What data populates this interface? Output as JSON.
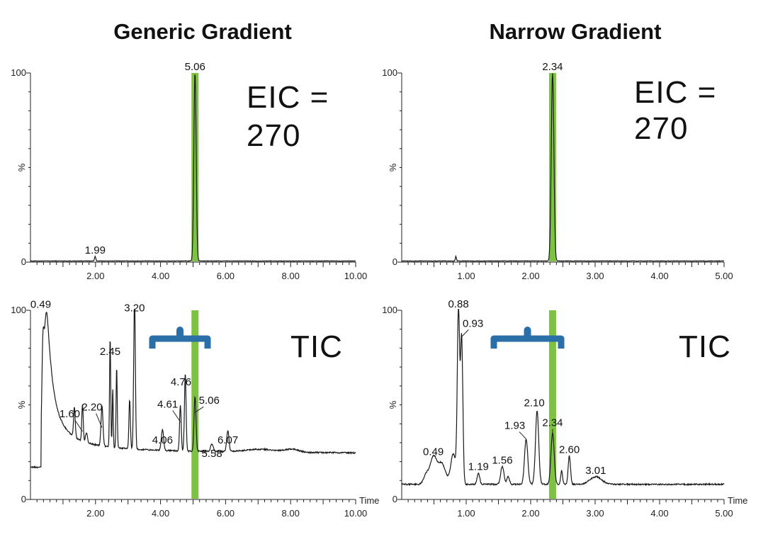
{
  "colors": {
    "trace": "#1a1a1a",
    "highlight_band": "#7dc242",
    "bracket": "#2a6fa8"
  },
  "chart_data": [
    {
      "type": "line",
      "panel_title": "Generic Gradient",
      "annotation": "EIC =",
      "annotation2": "270",
      "xlim": [
        0,
        10
      ],
      "ylim": [
        0,
        100
      ],
      "ylabel": "%",
      "xlabel": "",
      "x_tick_labels": [
        "2.00",
        "4.00",
        "6.00",
        "8.00",
        "10.00"
      ],
      "x_ticks": [
        2,
        4,
        6,
        8,
        10
      ],
      "y_tick_labels": [
        "0",
        "100"
      ],
      "y_ticks": [
        0,
        100
      ],
      "baseline": 0.6,
      "peaks": [
        {
          "rt": 1.99,
          "height": 3,
          "width": 0.02,
          "label": "1.99"
        },
        {
          "rt": 5.06,
          "height": 100,
          "width": 0.035,
          "label": "5.06"
        }
      ],
      "highlight_rt": 5.06
    },
    {
      "type": "line",
      "panel_title": "Narrow Gradient",
      "annotation": "EIC =",
      "annotation2": "270",
      "xlim": [
        0,
        5
      ],
      "ylim": [
        0,
        100
      ],
      "ylabel": "%",
      "xlabel": "",
      "x_tick_labels": [
        "1.00",
        "2.00",
        "3.00",
        "4.00",
        "5.00"
      ],
      "x_ticks": [
        1,
        2,
        3,
        4,
        5
      ],
      "y_tick_labels": [
        "0",
        "100"
      ],
      "y_ticks": [
        0,
        100
      ],
      "baseline": 0.6,
      "peaks": [
        {
          "rt": 0.84,
          "height": 3,
          "width": 0.008,
          "label": ""
        },
        {
          "rt": 2.34,
          "height": 100,
          "width": 0.02,
          "label": "2.34"
        }
      ],
      "highlight_rt": 2.34
    },
    {
      "type": "line",
      "annotation": "TIC",
      "xlim": [
        0,
        10
      ],
      "ylim": [
        0,
        100
      ],
      "ylabel": "%",
      "xlabel": "Time",
      "x_tick_labels": [
        "2.00",
        "4.00",
        "6.00",
        "8.00",
        "10.00"
      ],
      "x_ticks": [
        2,
        4,
        6,
        8,
        10
      ],
      "y_tick_labels": [
        "0",
        "100"
      ],
      "y_ticks": [
        0,
        100
      ],
      "baseline": 17,
      "peaks": [
        {
          "rt": 0.38,
          "height": 48,
          "width": 0.03,
          "label": ""
        },
        {
          "rt": 0.49,
          "height": 99,
          "width": 0.09,
          "tail": 0.45,
          "label": "0.49"
        },
        {
          "rt": 1.35,
          "height": 33,
          "width": 0.025,
          "label": ""
        },
        {
          "rt": 1.6,
          "height": 36,
          "width": 0.022,
          "label": "1.60"
        },
        {
          "rt": 1.72,
          "height": 22,
          "width": 0.03,
          "label": ""
        },
        {
          "rt": 2.2,
          "height": 38,
          "width": 0.03,
          "label": "2.20"
        },
        {
          "rt": 2.45,
          "height": 75,
          "width": 0.018,
          "label": "2.45"
        },
        {
          "rt": 2.53,
          "height": 48,
          "width": 0.015,
          "label": ""
        },
        {
          "rt": 2.65,
          "height": 60,
          "width": 0.018,
          "label": ""
        },
        {
          "rt": 3.05,
          "height": 43,
          "width": 0.022,
          "label": ""
        },
        {
          "rt": 3.2,
          "height": 98,
          "width": 0.025,
          "label": "3.20"
        },
        {
          "rt": 4.06,
          "height": 28,
          "width": 0.035,
          "label": "4.06"
        },
        {
          "rt": 4.61,
          "height": 41,
          "width": 0.025,
          "label": "4.61"
        },
        {
          "rt": 4.76,
          "height": 58,
          "width": 0.025,
          "label": "4.76"
        },
        {
          "rt": 5.06,
          "height": 46,
          "width": 0.03,
          "label": "5.06"
        },
        {
          "rt": 5.58,
          "height": 21,
          "width": 0.04,
          "label": "5.58"
        },
        {
          "rt": 6.07,
          "height": 28,
          "width": 0.035,
          "label": "6.07"
        },
        {
          "rt": 7.1,
          "height": 18.5,
          "width": 0.5,
          "label": ""
        },
        {
          "rt": 8.05,
          "height": 18.5,
          "width": 0.2,
          "label": ""
        }
      ],
      "highlight_rt": 5.06
    },
    {
      "type": "line",
      "annotation": "TIC",
      "xlim": [
        0,
        5
      ],
      "ylim": [
        0,
        100
      ],
      "ylabel": "%",
      "xlabel": "Time",
      "x_tick_labels": [
        "1.00",
        "2.00",
        "3.00",
        "4.00",
        "5.00"
      ],
      "x_ticks": [
        1,
        2,
        3,
        4,
        5
      ],
      "y_tick_labels": [
        "0",
        "100"
      ],
      "y_ticks": [
        0,
        100
      ],
      "baseline": 8,
      "peaks": [
        {
          "rt": 0.38,
          "height": 13,
          "width": 0.04,
          "label": ""
        },
        {
          "rt": 0.49,
          "height": 22,
          "width": 0.05,
          "label": "0.49"
        },
        {
          "rt": 0.62,
          "height": 19,
          "width": 0.06,
          "label": ""
        },
        {
          "rt": 0.8,
          "height": 24,
          "width": 0.04,
          "label": ""
        },
        {
          "rt": 0.88,
          "height": 100,
          "width": 0.018,
          "label": "0.88"
        },
        {
          "rt": 0.93,
          "height": 86,
          "width": 0.018,
          "label": "0.93"
        },
        {
          "rt": 1.19,
          "height": 14,
          "width": 0.02,
          "label": "1.19"
        },
        {
          "rt": 1.56,
          "height": 17.5,
          "width": 0.025,
          "label": "1.56"
        },
        {
          "rt": 1.65,
          "height": 12,
          "width": 0.02,
          "label": ""
        },
        {
          "rt": 1.93,
          "height": 32,
          "width": 0.025,
          "label": "1.93"
        },
        {
          "rt": 2.1,
          "height": 47,
          "width": 0.025,
          "label": "2.10"
        },
        {
          "rt": 2.34,
          "height": 35,
          "width": 0.025,
          "label": "2.34"
        },
        {
          "rt": 2.48,
          "height": 15,
          "width": 0.015,
          "label": ""
        },
        {
          "rt": 2.6,
          "height": 23,
          "width": 0.018,
          "label": "2.60"
        },
        {
          "rt": 3.01,
          "height": 12,
          "width": 0.09,
          "label": "3.01"
        }
      ],
      "highlight_rt": 2.34
    }
  ]
}
